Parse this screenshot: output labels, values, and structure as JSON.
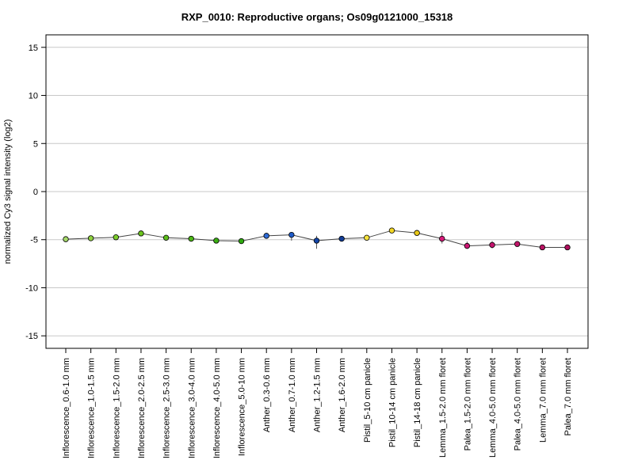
{
  "chart_data": {
    "type": "line",
    "title": "RXP_0010: Reproductive organs; Os09g0121000_15318",
    "xlabel": "",
    "ylabel": "normalized Cy3 signal intensity (log2)",
    "ylim": [
      -16.3,
      16.3
    ],
    "yticks": [
      15,
      10,
      5,
      0,
      -5,
      -10,
      -15
    ],
    "grid": "horizontal",
    "categories": [
      "Inflorescence_0.6-1.0 mm",
      "Inflorescence_1.0-1.5 mm",
      "Inflorescence_1.5-2.0 mm",
      "Inflorescence_2.0-2.5 mm",
      "Inflorescence_2.5-3.0 mm",
      "Inflorescence_3.0-4.0 mm",
      "Inflorescence_4.0-5.0 mm",
      "Inflorescence_5.0-10 mm",
      "Anther_0.3-0.6 mm",
      "Anther_0.7-1.0 mm",
      "Anther_1.2-1.5 mm",
      "Anther_1.6-2.0 mm",
      "Pistil_5-10 cm panicle",
      "Pistil_10-14 cm panicle",
      "Pistil_14-18 cm panicle",
      "Lemma_1.5-2.0 mm floret",
      "Palea_1.5-2.0 mm floret",
      "Lemma_4.0-5.0 mm floret",
      "Palea_4.0-5.0 mm floret",
      "Lemma_7.0 mm floret",
      "Palea_7.0 mm floret"
    ],
    "values": [
      -4.95,
      -4.85,
      -4.75,
      -4.35,
      -4.8,
      -4.9,
      -5.1,
      -5.15,
      -4.6,
      -4.5,
      -5.1,
      -4.9,
      -4.8,
      -4.05,
      -4.3,
      -4.9,
      -5.65,
      -5.55,
      -5.45,
      -5.8,
      -5.8
    ],
    "error_low": [
      -5.1,
      -5.0,
      -4.9,
      -4.5,
      -4.95,
      -5.05,
      -5.25,
      -5.35,
      -4.9,
      -5.1,
      -5.95,
      -5.15,
      -5.0,
      -4.25,
      -4.45,
      -5.4,
      -5.95,
      -5.9,
      -5.65,
      -5.9,
      -5.9
    ],
    "error_high": [
      -4.8,
      -4.7,
      -4.6,
      -4.2,
      -4.65,
      -4.75,
      -4.95,
      -4.95,
      -4.3,
      -4.2,
      -4.6,
      -4.65,
      -4.6,
      -3.85,
      -4.15,
      -4.2,
      -5.2,
      -5.15,
      -5.25,
      -5.7,
      -5.7
    ],
    "point_colors": [
      "#a6d96a",
      "#8fd13f",
      "#7ccd2c",
      "#6cc51e",
      "#5bbd1a",
      "#4cb816",
      "#3aae12",
      "#2ea80f",
      "#2f6bd6",
      "#1f5bc8",
      "#1446a8",
      "#123c96",
      "#f5e23c",
      "#f2d624",
      "#e8c818",
      "#d81b7a",
      "#cc1673",
      "#c4146e",
      "#c01468",
      "#b81262",
      "#b0105e"
    ],
    "line_color": "#444444",
    "grid_color": "#c8c8c8"
  }
}
